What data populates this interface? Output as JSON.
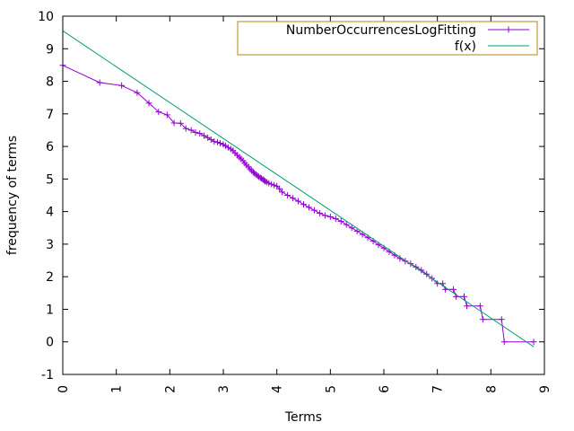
{
  "chart_data": {
    "type": "line",
    "xlabel": "Terms",
    "ylabel": "frequency of terms",
    "xlim": [
      0,
      9
    ],
    "ylim": [
      -1,
      10
    ],
    "x_ticks": [
      "0",
      "1",
      "2",
      "3",
      "4",
      "5",
      "6",
      "7",
      "8",
      "9"
    ],
    "y_ticks": [
      "-1",
      "0",
      "1",
      "2",
      "3",
      "4",
      "5",
      "6",
      "7",
      "8",
      "9",
      "10"
    ],
    "grid": false,
    "legend_position": "top-right",
    "series": [
      {
        "name": "NumberOccurrencesLogFitting",
        "style": "linespoints",
        "color": "#9400d3",
        "points": [
          [
            0.0,
            8.49
          ],
          [
            0.69,
            7.96
          ],
          [
            1.1,
            7.87
          ],
          [
            1.39,
            7.65
          ],
          [
            1.61,
            7.33
          ],
          [
            1.79,
            7.06
          ],
          [
            1.95,
            6.97
          ],
          [
            2.08,
            6.72
          ],
          [
            2.2,
            6.71
          ],
          [
            2.3,
            6.55
          ],
          [
            2.4,
            6.5
          ],
          [
            2.48,
            6.43
          ],
          [
            2.56,
            6.4
          ],
          [
            2.64,
            6.33
          ],
          [
            2.71,
            6.27
          ],
          [
            2.77,
            6.21
          ],
          [
            2.83,
            6.15
          ],
          [
            2.89,
            6.13
          ],
          [
            2.94,
            6.1
          ],
          [
            3.0,
            6.06
          ],
          [
            3.04,
            6.02
          ],
          [
            3.09,
            5.97
          ],
          [
            3.14,
            5.92
          ],
          [
            3.18,
            5.87
          ],
          [
            3.22,
            5.8
          ],
          [
            3.26,
            5.73
          ],
          [
            3.3,
            5.67
          ],
          [
            3.33,
            5.62
          ],
          [
            3.37,
            5.56
          ],
          [
            3.4,
            5.49
          ],
          [
            3.43,
            5.43
          ],
          [
            3.47,
            5.37
          ],
          [
            3.5,
            5.31
          ],
          [
            3.53,
            5.26
          ],
          [
            3.56,
            5.21
          ],
          [
            3.58,
            5.18
          ],
          [
            3.61,
            5.14
          ],
          [
            3.64,
            5.1
          ],
          [
            3.66,
            5.07
          ],
          [
            3.69,
            5.04
          ],
          [
            3.71,
            5.02
          ],
          [
            3.74,
            4.99
          ],
          [
            3.76,
            4.96
          ],
          [
            3.78,
            4.93
          ],
          [
            3.81,
            4.9
          ],
          [
            3.85,
            4.87
          ],
          [
            3.9,
            4.84
          ],
          [
            3.95,
            4.81
          ],
          [
            4.0,
            4.78
          ],
          [
            4.05,
            4.7
          ],
          [
            4.1,
            4.6
          ],
          [
            4.2,
            4.5
          ],
          [
            4.3,
            4.41
          ],
          [
            4.4,
            4.32
          ],
          [
            4.5,
            4.22
          ],
          [
            4.6,
            4.13
          ],
          [
            4.7,
            4.04
          ],
          [
            4.8,
            3.95
          ],
          [
            4.9,
            3.88
          ],
          [
            5.0,
            3.84
          ],
          [
            5.1,
            3.78
          ],
          [
            5.2,
            3.7
          ],
          [
            5.3,
            3.6
          ],
          [
            5.4,
            3.5
          ],
          [
            5.5,
            3.4
          ],
          [
            5.6,
            3.3
          ],
          [
            5.7,
            3.2
          ],
          [
            5.8,
            3.09
          ],
          [
            5.9,
            2.98
          ],
          [
            6.0,
            2.88
          ],
          [
            6.1,
            2.77
          ],
          [
            6.2,
            2.66
          ],
          [
            6.3,
            2.56
          ],
          [
            6.4,
            2.48
          ],
          [
            6.5,
            2.4
          ],
          [
            6.6,
            2.3
          ],
          [
            6.7,
            2.2
          ],
          [
            6.8,
            2.08
          ],
          [
            6.9,
            1.95
          ],
          [
            7.0,
            1.79
          ],
          [
            7.1,
            1.79
          ],
          [
            7.15,
            1.61
          ],
          [
            7.3,
            1.61
          ],
          [
            7.35,
            1.39
          ],
          [
            7.5,
            1.39
          ],
          [
            7.55,
            1.1
          ],
          [
            7.8,
            1.1
          ],
          [
            7.85,
            0.69
          ],
          [
            8.2,
            0.69
          ],
          [
            8.25,
            0.0
          ],
          [
            8.8,
            0.0
          ]
        ]
      },
      {
        "name": "f(x)",
        "style": "line",
        "color": "#009e73",
        "points": [
          [
            0.0,
            9.55
          ],
          [
            8.8,
            -0.15
          ]
        ]
      }
    ]
  }
}
